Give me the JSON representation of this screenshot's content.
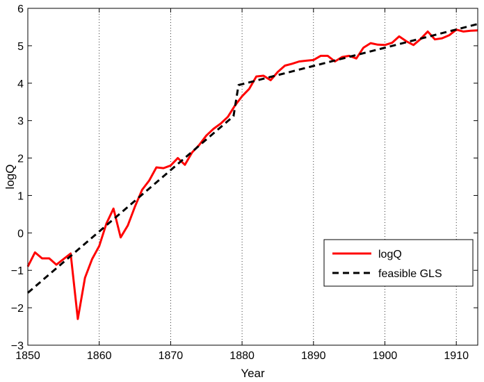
{
  "chart_data": {
    "type": "line",
    "title": "",
    "xlabel": "Year",
    "ylabel": "logQ",
    "xlim": [
      1850,
      1913
    ],
    "ylim": [
      -3,
      6
    ],
    "xticks": [
      1850,
      1860,
      1870,
      1880,
      1890,
      1900,
      1910
    ],
    "yticks": [
      -3,
      -2,
      -1,
      0,
      1,
      2,
      3,
      4,
      5,
      6
    ],
    "xgrid": true,
    "ygrid": false,
    "legend": {
      "placement": "lower-right"
    },
    "series": [
      {
        "name": "logQ",
        "color": "#ff0000",
        "style": "solid",
        "points": [
          [
            1850,
            -0.9
          ],
          [
            1851,
            -0.52
          ],
          [
            1852,
            -0.68
          ],
          [
            1853,
            -0.68
          ],
          [
            1854,
            -0.85
          ],
          [
            1855,
            -0.7
          ],
          [
            1856,
            -0.55
          ],
          [
            1857,
            -2.3
          ],
          [
            1858,
            -1.2
          ],
          [
            1859,
            -0.7
          ],
          [
            1860,
            -0.35
          ],
          [
            1861,
            0.25
          ],
          [
            1862,
            0.65
          ],
          [
            1863,
            -0.12
          ],
          [
            1864,
            0.2
          ],
          [
            1865,
            0.7
          ],
          [
            1866,
            1.15
          ],
          [
            1867,
            1.4
          ],
          [
            1868,
            1.75
          ],
          [
            1869,
            1.73
          ],
          [
            1870,
            1.8
          ],
          [
            1871,
            2.0
          ],
          [
            1872,
            1.82
          ],
          [
            1873,
            2.15
          ],
          [
            1874,
            2.35
          ],
          [
            1875,
            2.6
          ],
          [
            1876,
            2.78
          ],
          [
            1877,
            2.92
          ],
          [
            1878,
            3.1
          ],
          [
            1879,
            3.4
          ],
          [
            1880,
            3.65
          ],
          [
            1881,
            3.85
          ],
          [
            1882,
            4.18
          ],
          [
            1883,
            4.2
          ],
          [
            1884,
            4.08
          ],
          [
            1885,
            4.3
          ],
          [
            1886,
            4.47
          ],
          [
            1887,
            4.52
          ],
          [
            1888,
            4.58
          ],
          [
            1889,
            4.6
          ],
          [
            1890,
            4.62
          ],
          [
            1891,
            4.73
          ],
          [
            1892,
            4.73
          ],
          [
            1893,
            4.58
          ],
          [
            1894,
            4.7
          ],
          [
            1895,
            4.73
          ],
          [
            1896,
            4.66
          ],
          [
            1897,
            4.95
          ],
          [
            1898,
            5.07
          ],
          [
            1899,
            5.03
          ],
          [
            1900,
            5.02
          ],
          [
            1901,
            5.08
          ],
          [
            1902,
            5.25
          ],
          [
            1903,
            5.12
          ],
          [
            1904,
            5.02
          ],
          [
            1905,
            5.18
          ],
          [
            1906,
            5.38
          ],
          [
            1907,
            5.17
          ],
          [
            1908,
            5.2
          ],
          [
            1909,
            5.28
          ],
          [
            1910,
            5.43
          ],
          [
            1911,
            5.38
          ],
          [
            1912,
            5.4
          ],
          [
            1913,
            5.41
          ]
        ]
      },
      {
        "name": "feasible GLS",
        "color": "#000000",
        "style": "dashed",
        "points": [
          [
            1850,
            -1.6
          ],
          [
            1878.8,
            3.12
          ],
          [
            1879.5,
            3.95
          ],
          [
            1913,
            5.58
          ]
        ]
      }
    ]
  }
}
